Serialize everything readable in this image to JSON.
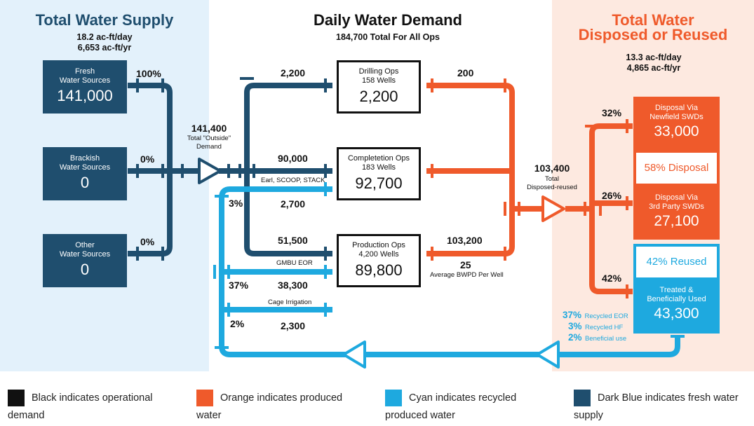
{
  "colors": {
    "dark_blue": "#1f4e6e",
    "orange": "#ef5a2b",
    "cyan": "#1ea9df",
    "black": "#111111",
    "left_bg": "#e3f1fb",
    "right_bg": "#fde9e0"
  },
  "supply": {
    "title": "Total Water Supply",
    "per_day": "18.2 ac-ft/day",
    "per_year": "6,653 ac-ft/yr",
    "sources": [
      {
        "label_1": "Fresh",
        "label_2": "Water Sources",
        "value": "141,000",
        "pct": "100%"
      },
      {
        "label_1": "Brackish",
        "label_2": "Water Sources",
        "value": "0",
        "pct": "0%"
      },
      {
        "label_1": "Other",
        "label_2": "Water Sources",
        "value": "0",
        "pct": "0%"
      }
    ],
    "outside_value": "141,400",
    "outside_label_1": "Total \"Outside\"",
    "outside_label_2": "Demand"
  },
  "demand": {
    "title": "Daily Water Demand",
    "subtitle": "184,700 Total For All Ops",
    "ops": [
      {
        "label_1": "Drilling Ops",
        "label_2": "158 Wells",
        "value": "2,200",
        "in_value": "2,200",
        "out_value": "200"
      },
      {
        "label_1": "Completetion Ops",
        "label_2": "183 Wells",
        "value": "92,700",
        "in_value": "90,000",
        "in_note": "Earl, SCOOP, STACK",
        "recycled_value": "2,700",
        "recycled_pct": "3%",
        "out_value": ""
      },
      {
        "label_1": "Production Ops",
        "label_2": "4,200 Wells",
        "value": "89,800",
        "in_value": "51,500",
        "in_note": "GMBU EOR",
        "out_value": "103,200",
        "bwpd_value": "25",
        "bwpd_label": "Average BWPD Per Well"
      }
    ],
    "eor_pct": "37%",
    "eor_value": "38,300",
    "irrigation_label": "Cage Irrigation",
    "irrigation_pct": "2%",
    "irrigation_value": "2,300"
  },
  "disposed": {
    "title_1": "Total Water",
    "title_2": "Disposed or Reused",
    "per_day": "13.3 ac-ft/day",
    "per_year": "4,865 ac-ft/yr",
    "total_value": "103,400",
    "total_label_1": "Total",
    "total_label_2": "Disposed-reused",
    "pct_newfield": "32%",
    "pct_3rdparty": "26%",
    "pct_reused": "42%",
    "newfield": {
      "label_1": "Disposal Via",
      "label_2": "Newfield SWDs",
      "value": "33,000"
    },
    "disposal_pct_label": "58% Disposal",
    "thirdparty": {
      "label_1": "Disposal Via",
      "label_2": "3rd Party SWDs",
      "value": "27,100"
    },
    "reused_pct_label": "42% Reused",
    "treated": {
      "label_1": "Treated &",
      "label_2": "Beneficially Used",
      "value": "43,300"
    },
    "breakdown": [
      {
        "pct": "37%",
        "label": "Recycled EOR"
      },
      {
        "pct": "3%",
        "label": "Recycled HF"
      },
      {
        "pct": "2%",
        "label": "Beneficial use"
      }
    ]
  },
  "legend": [
    {
      "color": "#111111",
      "line_1": "Black indicates operational",
      "line_2": "demand"
    },
    {
      "color": "#ef5a2b",
      "line_1": "Orange indicates produced",
      "line_2": "water"
    },
    {
      "color": "#1ea9df",
      "line_1": "Cyan indicates recycled",
      "line_2": "produced water"
    },
    {
      "color": "#1f4e6e",
      "line_1": "Dark Blue indicates fresh water",
      "line_2": "supply"
    }
  ]
}
